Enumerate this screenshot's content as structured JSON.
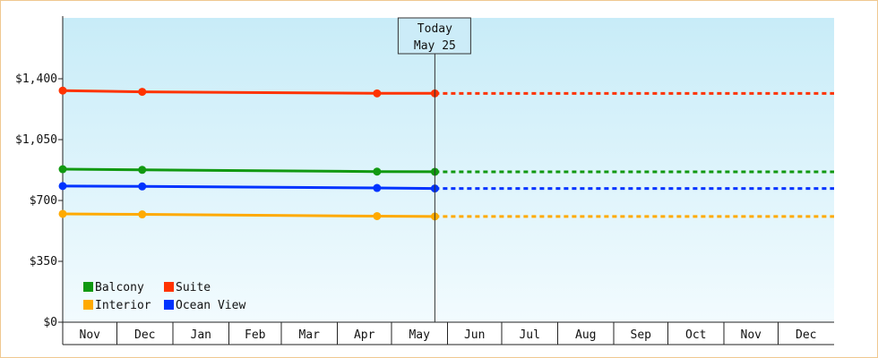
{
  "chart_data": {
    "type": "line",
    "title": "",
    "xlabel": "",
    "ylabel": "",
    "x_domain": [
      "2023-11-01",
      "2025-01-01"
    ],
    "ylim": [
      0,
      1750
    ],
    "y_ticks": [
      0,
      350,
      700,
      1050,
      1400
    ],
    "y_tick_labels": [
      "$0",
      "$350",
      "$700",
      "$1,050",
      "$1,400"
    ],
    "x_months": [
      {
        "label": "Nov",
        "start": "2023-11-01",
        "end": "2023-12-01"
      },
      {
        "label": "Dec",
        "start": "2023-12-01",
        "end": "2024-01-01"
      },
      {
        "label": "Jan",
        "start": "2024-01-01",
        "end": "2024-02-01"
      },
      {
        "label": "Feb",
        "start": "2024-02-01",
        "end": "2024-03-01"
      },
      {
        "label": "Mar",
        "start": "2024-03-01",
        "end": "2024-04-01"
      },
      {
        "label": "Apr",
        "start": "2024-04-01",
        "end": "2024-05-01"
      },
      {
        "label": "May",
        "start": "2024-05-01",
        "end": "2024-06-01"
      },
      {
        "label": "Jun",
        "start": "2024-06-01",
        "end": "2024-07-01"
      },
      {
        "label": "Jul",
        "start": "2024-07-01",
        "end": "2024-08-01"
      },
      {
        "label": "Aug",
        "start": "2024-08-01",
        "end": "2024-09-01"
      },
      {
        "label": "Sep",
        "start": "2024-09-01",
        "end": "2024-10-01"
      },
      {
        "label": "Oct",
        "start": "2024-10-01",
        "end": "2024-11-01"
      },
      {
        "label": "Nov",
        "start": "2024-11-01",
        "end": "2024-12-01"
      },
      {
        "label": "Dec",
        "start": "2024-12-01",
        "end": "2025-01-01"
      }
    ],
    "today": {
      "line1": "Today",
      "line2": "May 25",
      "date": "2024-05-25"
    },
    "series": [
      {
        "name": "Suite",
        "color": "#ff3300",
        "points": [
          {
            "x": "2023-11-01",
            "y": 1332
          },
          {
            "x": "2023-12-15",
            "y": 1325
          },
          {
            "x": "2024-04-23",
            "y": 1316
          },
          {
            "x": "2024-05-25",
            "y": 1316
          }
        ],
        "projection": {
          "from": "2024-05-25",
          "to": "2025-01-01",
          "y": 1316
        }
      },
      {
        "name": "Balcony",
        "color": "#119911",
        "points": [
          {
            "x": "2023-11-01",
            "y": 880
          },
          {
            "x": "2023-12-15",
            "y": 876
          },
          {
            "x": "2024-04-23",
            "y": 866
          },
          {
            "x": "2024-05-25",
            "y": 865
          }
        ],
        "projection": {
          "from": "2024-05-25",
          "to": "2025-01-01",
          "y": 865
        }
      },
      {
        "name": "Ocean View",
        "color": "#0033ff",
        "points": [
          {
            "x": "2023-11-01",
            "y": 783
          },
          {
            "x": "2023-12-15",
            "y": 781
          },
          {
            "x": "2024-04-23",
            "y": 772
          },
          {
            "x": "2024-05-25",
            "y": 769
          }
        ],
        "projection": {
          "from": "2024-05-25",
          "to": "2025-01-01",
          "y": 769
        }
      },
      {
        "name": "Interior",
        "color": "#ffaa00",
        "points": [
          {
            "x": "2023-11-01",
            "y": 623
          },
          {
            "x": "2023-12-15",
            "y": 620
          },
          {
            "x": "2024-04-23",
            "y": 610
          },
          {
            "x": "2024-05-25",
            "y": 608
          }
        ],
        "projection": {
          "from": "2024-05-25",
          "to": "2025-01-01",
          "y": 608
        }
      }
    ],
    "legend": {
      "placement": "bottom-left",
      "order": [
        "Balcony",
        "Suite",
        "Interior",
        "Ocean View"
      ]
    },
    "grid": false,
    "background_colors": {
      "top": "#c8ecf8",
      "bottom": "#f2fbfe"
    }
  }
}
